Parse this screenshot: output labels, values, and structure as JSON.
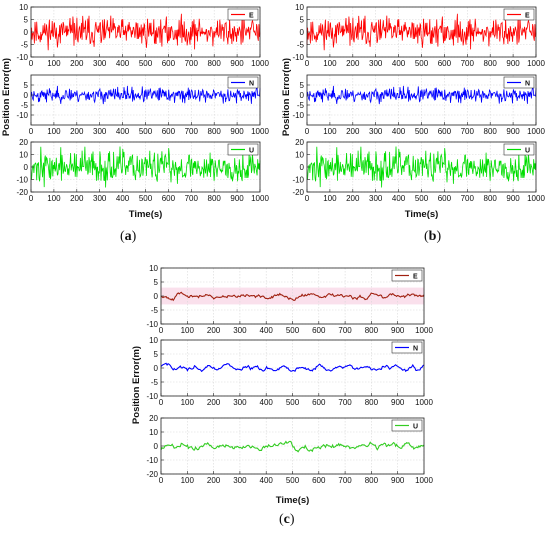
{
  "panel_labels": [
    "(a)",
    "(b)",
    "(c)"
  ],
  "chart_data": [
    {
      "type": "line",
      "panel": "(a)",
      "xlabel": "Time(s)",
      "ylabel": "Position Error(m)",
      "subplots": [
        {
          "series": [
            {
              "name": "E",
              "color": "#ff0000",
              "x_range": [
                0,
                1000
              ],
              "y_amplitude": 8
            }
          ],
          "ylim": [
            -10,
            10
          ],
          "yticks": [
            -10,
            -5,
            0,
            5,
            10
          ]
        },
        {
          "series": [
            {
              "name": "N",
              "color": "#0000ff",
              "x_range": [
                0,
                1000
              ],
              "y_amplitude": 5
            }
          ],
          "ylim": [
            -15,
            10
          ],
          "yticks": [
            -10,
            -5,
            0,
            5
          ]
        },
        {
          "series": [
            {
              "name": "U",
              "color": "#00dd00",
              "x_range": [
                0,
                1000
              ],
              "y_amplitude": 18
            }
          ],
          "ylim": [
            -20,
            20
          ],
          "yticks": [
            -20,
            -10,
            0,
            10,
            20
          ]
        }
      ],
      "xlim": [
        0,
        1000
      ],
      "xticks": [
        0,
        100,
        200,
        300,
        400,
        500,
        600,
        700,
        800,
        900,
        1000
      ],
      "grid": true,
      "legend_position": "top-right"
    },
    {
      "type": "line",
      "panel": "(b)",
      "xlabel": "Time(s)",
      "ylabel": "Position Error(m)",
      "subplots": [
        {
          "series": [
            {
              "name": "E",
              "color": "#ff0000",
              "x_range": [
                0,
                1000
              ],
              "y_amplitude": 8
            }
          ],
          "ylim": [
            -10,
            10
          ],
          "yticks": [
            -10,
            -5,
            0,
            5,
            10
          ]
        },
        {
          "series": [
            {
              "name": "N",
              "color": "#0000ff",
              "x_range": [
                0,
                1000
              ],
              "y_amplitude": 5
            }
          ],
          "ylim": [
            -15,
            10
          ],
          "yticks": [
            -10,
            -5,
            0,
            5
          ]
        },
        {
          "series": [
            {
              "name": "U",
              "color": "#00dd00",
              "x_range": [
                0,
                1000
              ],
              "y_amplitude": 18
            }
          ],
          "ylim": [
            -20,
            20
          ],
          "yticks": [
            -20,
            -10,
            0,
            10,
            20
          ]
        }
      ],
      "xlim": [
        0,
        1000
      ],
      "xticks": [
        0,
        100,
        200,
        300,
        400,
        500,
        600,
        700,
        800,
        900,
        1000
      ],
      "grid": true,
      "legend_position": "top-right"
    },
    {
      "type": "line",
      "panel": "(c)",
      "xlabel": "Time(s)",
      "ylabel": "Position Error(m)",
      "subplots": [
        {
          "series": [
            {
              "name": "E",
              "color": "#a02010",
              "x_range": [
                0,
                1000
              ],
              "y_amplitude": 3
            }
          ],
          "ylim": [
            -10,
            10
          ],
          "yticks": [
            -10,
            -5,
            0,
            5,
            10
          ]
        },
        {
          "series": [
            {
              "name": "N",
              "color": "#0000ff",
              "x_range": [
                0,
                1000
              ],
              "y_amplitude": 3
            }
          ],
          "ylim": [
            -10,
            10
          ],
          "yticks": [
            -10,
            -5,
            0,
            5,
            10
          ]
        },
        {
          "series": [
            {
              "name": "U",
              "color": "#33cc22",
              "x_range": [
                0,
                1000
              ],
              "y_amplitude": 8
            }
          ],
          "ylim": [
            -20,
            20
          ],
          "yticks": [
            -20,
            -10,
            0,
            10,
            20
          ]
        }
      ],
      "xlim": [
        0,
        1000
      ],
      "xticks": [
        0,
        100,
        200,
        300,
        400,
        500,
        600,
        700,
        800,
        900,
        1000
      ],
      "grid": true,
      "legend_position": "top-right"
    }
  ]
}
